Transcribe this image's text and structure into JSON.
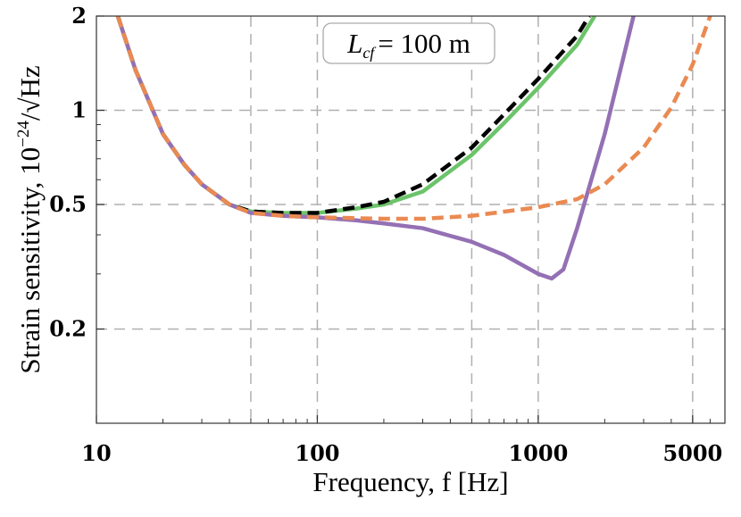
{
  "chart_data": {
    "type": "line",
    "xlabel": "Frequency, f [Hz]",
    "ylabel": {
      "text": "Strain sensitivity, 10",
      "superscript": "−24",
      "unit": "/√Hz"
    },
    "annotation": {
      "symbol": "L",
      "subscript": "cf",
      "text": "= 100 m"
    },
    "xscale": "log",
    "yscale": "log",
    "xlim": [
      10,
      7000
    ],
    "ylim": [
      0.1,
      2
    ],
    "xticks": [
      10,
      100,
      1000,
      5000
    ],
    "yticks": [
      0.2,
      0.5,
      1,
      2
    ],
    "xgrid": [
      50,
      100,
      500,
      1000,
      5000
    ],
    "ygrid": [
      0.2,
      0.5,
      1
    ],
    "series": [
      {
        "color": "#6cc46a",
        "dash": false,
        "x": [
          12.5,
          15,
          20,
          25,
          30,
          40,
          50,
          70,
          100,
          150,
          200,
          300,
          500,
          700,
          1000,
          1500,
          1800
        ],
        "values": [
          2,
          1.35,
          0.84,
          0.67,
          0.58,
          0.5,
          0.475,
          0.47,
          0.47,
          0.485,
          0.5,
          0.55,
          0.72,
          0.91,
          1.18,
          1.62,
          2
        ]
      },
      {
        "color": "#000000",
        "dash": true,
        "x": [
          12.5,
          15,
          20,
          25,
          30,
          40,
          50,
          70,
          100,
          150,
          200,
          300,
          500,
          700,
          1000,
          1500,
          1700
        ],
        "values": [
          2,
          1.35,
          0.84,
          0.67,
          0.58,
          0.5,
          0.475,
          0.47,
          0.47,
          0.49,
          0.51,
          0.58,
          0.76,
          0.97,
          1.26,
          1.73,
          2
        ]
      },
      {
        "color": "#9470b4",
        "dash": false,
        "x": [
          12.5,
          15,
          20,
          25,
          30,
          40,
          50,
          70,
          100,
          150,
          200,
          300,
          500,
          700,
          1000,
          1150,
          1300,
          1500,
          2000,
          2700
        ],
        "values": [
          2,
          1.35,
          0.84,
          0.67,
          0.58,
          0.5,
          0.47,
          0.46,
          0.455,
          0.445,
          0.435,
          0.42,
          0.38,
          0.345,
          0.3,
          0.29,
          0.31,
          0.42,
          0.84,
          2
        ]
      },
      {
        "color": "#ea8a52",
        "dash": true,
        "x": [
          12.5,
          15,
          20,
          25,
          30,
          40,
          50,
          70,
          100,
          200,
          300,
          500,
          1000,
          1500,
          2000,
          3000,
          4000,
          5000,
          6000
        ],
        "values": [
          2,
          1.35,
          0.84,
          0.67,
          0.58,
          0.5,
          0.47,
          0.46,
          0.455,
          0.45,
          0.45,
          0.46,
          0.49,
          0.52,
          0.58,
          0.76,
          1.02,
          1.4,
          2
        ]
      }
    ]
  }
}
